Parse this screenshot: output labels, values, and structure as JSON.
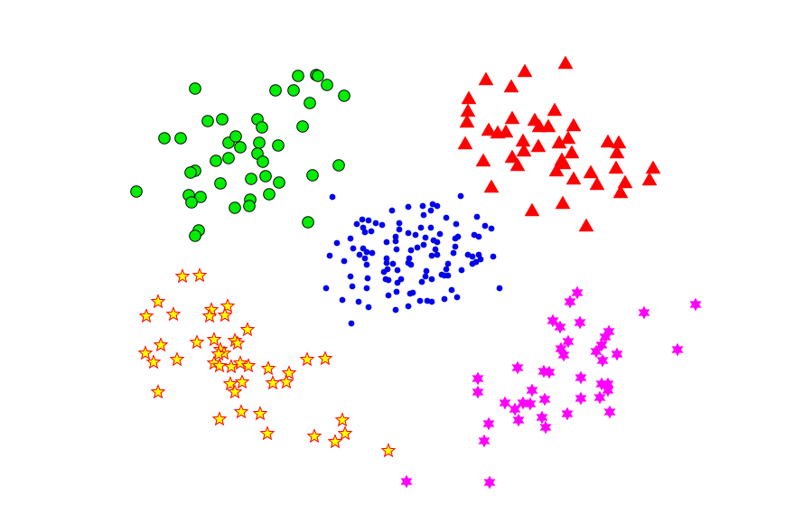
{
  "chart_data": {
    "type": "scatter",
    "title": "",
    "xlabel": "",
    "ylabel": "",
    "xlim": [
      0,
      8.69
    ],
    "ylim": [
      0,
      5.8
    ],
    "axes_visible": false,
    "grid": false,
    "legend": "none",
    "series": [
      {
        "marker": "circle",
        "color": "#00ee00",
        "edgecolor": "#000000",
        "points": [
          [
            3.3,
            4.96
          ],
          [
            3.5,
            4.97
          ],
          [
            3.52,
            4.96
          ],
          [
            3.62,
            4.86
          ],
          [
            3.81,
            4.74
          ],
          [
            2.16,
            4.82
          ],
          [
            3.05,
            4.8
          ],
          [
            3.25,
            4.8
          ],
          [
            3.43,
            4.66
          ],
          [
            2.3,
            4.46
          ],
          [
            2.46,
            4.48
          ],
          [
            2.85,
            4.48
          ],
          [
            2.9,
            4.39
          ],
          [
            3.35,
            4.4
          ],
          [
            1.82,
            4.27
          ],
          [
            2.0,
            4.27
          ],
          [
            2.53,
            4.22
          ],
          [
            2.61,
            4.29
          ],
          [
            2.66,
            4.17
          ],
          [
            2.87,
            4.22
          ],
          [
            3.08,
            4.19
          ],
          [
            2.85,
            4.1
          ],
          [
            2.91,
            4.01
          ],
          [
            2.39,
            4.02
          ],
          [
            2.53,
            4.05
          ],
          [
            2.16,
            3.91
          ],
          [
            2.11,
            3.89
          ],
          [
            2.44,
            3.77
          ],
          [
            2.78,
            3.82
          ],
          [
            2.94,
            3.85
          ],
          [
            3.09,
            3.78
          ],
          [
            3.46,
            3.86
          ],
          [
            3.75,
            3.97
          ],
          [
            1.51,
            3.68
          ],
          [
            2.09,
            3.64
          ],
          [
            2.22,
            3.62
          ],
          [
            2.12,
            3.56
          ],
          [
            2.98,
            3.65
          ],
          [
            2.77,
            3.59
          ],
          [
            2.76,
            3.52
          ],
          [
            2.6,
            3.5
          ],
          [
            3.41,
            3.34
          ],
          [
            2.2,
            3.25
          ],
          [
            2.16,
            3.19
          ]
        ]
      },
      {
        "marker": "triangle",
        "color": "#ff0000",
        "edgecolor": "#ff0000",
        "points": [
          [
            6.26,
            5.1
          ],
          [
            5.81,
            5.01
          ],
          [
            5.38,
            4.92
          ],
          [
            5.66,
            4.84
          ],
          [
            5.19,
            4.71
          ],
          [
            5.18,
            4.57
          ],
          [
            5.17,
            4.45
          ],
          [
            5.67,
            4.49
          ],
          [
            6.14,
            4.58
          ],
          [
            5.92,
            4.47
          ],
          [
            5.97,
            4.4
          ],
          [
            6.07,
            4.4
          ],
          [
            6.35,
            4.41
          ],
          [
            5.41,
            4.36
          ],
          [
            5.51,
            4.33
          ],
          [
            5.6,
            4.34
          ],
          [
            5.15,
            4.21
          ],
          [
            5.79,
            4.24
          ],
          [
            5.96,
            4.18
          ],
          [
            6.19,
            4.22
          ],
          [
            6.29,
            4.27
          ],
          [
            6.33,
            4.11
          ],
          [
            5.8,
            4.13
          ],
          [
            5.67,
            4.06
          ],
          [
            5.73,
            3.97
          ],
          [
            5.35,
            4.02
          ],
          [
            6.22,
            4.03
          ],
          [
            6.24,
            3.99
          ],
          [
            6.16,
            3.91
          ],
          [
            6.35,
            3.82
          ],
          [
            6.54,
            3.89
          ],
          [
            6.61,
            3.76
          ],
          [
            6.73,
            4.23
          ],
          [
            6.85,
            4.22
          ],
          [
            6.83,
            4.11
          ],
          [
            6.82,
            3.94
          ],
          [
            6.92,
            3.78
          ],
          [
            6.87,
            3.67
          ],
          [
            7.23,
            3.94
          ],
          [
            7.19,
            3.81
          ],
          [
            5.44,
            3.73
          ],
          [
            6.23,
            3.55
          ],
          [
            5.89,
            3.47
          ],
          [
            6.49,
            3.3
          ]
        ]
      },
      {
        "marker": "dot",
        "color": "#0000ee",
        "edgecolor": "#0000ee",
        "points": [
          [
            3.68,
            3.62
          ],
          [
            5.1,
            3.63
          ],
          [
            4.34,
            3.47
          ],
          [
            4.52,
            3.51
          ],
          [
            4.68,
            3.52
          ],
          [
            4.79,
            3.54
          ],
          [
            4.84,
            3.52
          ],
          [
            4.77,
            3.47
          ],
          [
            4.69,
            3.42
          ],
          [
            4.94,
            3.39
          ],
          [
            5.28,
            3.4
          ],
          [
            5.37,
            3.3
          ],
          [
            5.44,
            3.27
          ],
          [
            5.05,
            3.32
          ],
          [
            4.01,
            3.37
          ],
          [
            3.95,
            3.32
          ],
          [
            4.08,
            3.36
          ],
          [
            4.16,
            3.33
          ],
          [
            4.23,
            3.31
          ],
          [
            4.42,
            3.33
          ],
          [
            4.42,
            3.26
          ],
          [
            4.02,
            3.28
          ],
          [
            4.04,
            3.23
          ],
          [
            4.11,
            3.24
          ],
          [
            4.66,
            3.28
          ],
          [
            4.77,
            3.28
          ],
          [
            4.52,
            3.22
          ],
          [
            4.6,
            3.2
          ],
          [
            4.87,
            3.21
          ],
          [
            3.88,
            3.16
          ],
          [
            3.73,
            3.11
          ],
          [
            4.28,
            3.12
          ],
          [
            4.38,
            3.18
          ],
          [
            4.38,
            3.13
          ],
          [
            4.71,
            3.17
          ],
          [
            4.8,
            3.14
          ],
          [
            4.84,
            3.12
          ],
          [
            5.04,
            3.16
          ],
          [
            5.07,
            3.18
          ],
          [
            5.25,
            3.2
          ],
          [
            5.3,
            3.18
          ],
          [
            3.91,
            3.05
          ],
          [
            4.02,
            3.05
          ],
          [
            4.06,
            3.01
          ],
          [
            4.12,
            3.0
          ],
          [
            3.98,
            2.98
          ],
          [
            4.04,
            2.94
          ],
          [
            4.39,
            3.04
          ],
          [
            4.55,
            3.03
          ],
          [
            4.62,
            3.06
          ],
          [
            4.69,
            3.09
          ],
          [
            4.82,
            3.04
          ],
          [
            5.04,
            3.07
          ],
          [
            5.02,
            3.0
          ],
          [
            4.78,
            2.97
          ],
          [
            4.84,
            2.98
          ],
          [
            3.65,
            2.97
          ],
          [
            3.81,
            2.91
          ],
          [
            4.06,
            2.87
          ],
          [
            4.28,
            2.94
          ],
          [
            4.28,
            2.89
          ],
          [
            4.35,
            2.88
          ],
          [
            4.53,
            2.94
          ],
          [
            4.52,
            2.89
          ],
          [
            4.55,
            2.87
          ],
          [
            5.18,
            2.98
          ],
          [
            5.23,
            2.96
          ],
          [
            5.3,
            2.98
          ],
          [
            5.32,
            2.93
          ],
          [
            5.23,
            2.88
          ],
          [
            5.27,
            2.9
          ],
          [
            5.46,
            2.96
          ],
          [
            4.96,
            2.88
          ],
          [
            4.94,
            2.82
          ],
          [
            5.11,
            2.81
          ],
          [
            4.4,
            2.81
          ],
          [
            4.29,
            2.82
          ],
          [
            4.25,
            2.79
          ],
          [
            4.72,
            2.8
          ],
          [
            4.71,
            2.74
          ],
          [
            4.89,
            2.76
          ],
          [
            4.92,
            2.75
          ],
          [
            4.96,
            2.75
          ],
          [
            3.88,
            2.74
          ],
          [
            4.07,
            2.72
          ],
          [
            4.27,
            2.71
          ],
          [
            4.3,
            2.7
          ],
          [
            4.44,
            2.71
          ],
          [
            4.4,
            2.67
          ],
          [
            4.67,
            2.68
          ],
          [
            4.78,
            2.71
          ],
          [
            3.61,
            2.61
          ],
          [
            3.9,
            2.63
          ],
          [
            4.06,
            2.61
          ],
          [
            4.39,
            2.57
          ],
          [
            4.54,
            2.55
          ],
          [
            4.57,
            2.56
          ],
          [
            5.0,
            2.59
          ],
          [
            5.53,
            2.61
          ],
          [
            4.3,
            2.53
          ],
          [
            3.79,
            2.48
          ],
          [
            3.97,
            2.46
          ],
          [
            4.08,
            2.4
          ],
          [
            4.65,
            2.47
          ],
          [
            4.73,
            2.47
          ],
          [
            4.78,
            2.46
          ],
          [
            4.92,
            2.49
          ],
          [
            5.06,
            2.51
          ],
          [
            4.38,
            2.37
          ],
          [
            4.52,
            2.41
          ],
          [
            3.89,
            2.22
          ]
        ]
      },
      {
        "marker": "star5",
        "color": "#ffff00",
        "edgecolor": "#ff0000",
        "points": [
          [
            2.02,
            2.74
          ],
          [
            2.21,
            2.75
          ],
          [
            1.75,
            2.46
          ],
          [
            1.62,
            2.3
          ],
          [
            1.92,
            2.32
          ],
          [
            2.34,
            2.37
          ],
          [
            2.32,
            2.3
          ],
          [
            2.52,
            2.41
          ],
          [
            2.49,
            2.31
          ],
          [
            2.74,
            2.15
          ],
          [
            1.78,
            1.98
          ],
          [
            1.61,
            1.89
          ],
          [
            1.7,
            1.79
          ],
          [
            1.96,
            1.82
          ],
          [
            2.18,
            2.01
          ],
          [
            2.37,
            2.04
          ],
          [
            2.6,
            2.03
          ],
          [
            2.63,
            2.0
          ],
          [
            2.44,
            1.93
          ],
          [
            2.48,
            1.89
          ],
          [
            2.42,
            1.88
          ],
          [
            2.37,
            1.78
          ],
          [
            2.43,
            1.75
          ],
          [
            2.56,
            1.74
          ],
          [
            2.66,
            1.78
          ],
          [
            2.75,
            1.75
          ],
          [
            2.97,
            1.72
          ],
          [
            3.2,
            1.67
          ],
          [
            3.4,
            1.82
          ],
          [
            3.6,
            1.83
          ],
          [
            2.55,
            1.55
          ],
          [
            2.68,
            1.57
          ],
          [
            2.6,
            1.46
          ],
          [
            3.02,
            1.56
          ],
          [
            3.17,
            1.57
          ],
          [
            1.75,
            1.46
          ],
          [
            2.67,
            1.24
          ],
          [
            2.88,
            1.22
          ],
          [
            2.43,
            1.16
          ],
          [
            2.96,
            1.0
          ],
          [
            3.79,
            1.15
          ],
          [
            3.82,
            1.0
          ],
          [
            3.48,
            0.97
          ],
          [
            3.71,
            0.91
          ],
          [
            4.3,
            0.81
          ]
        ]
      },
      {
        "marker": "hexagram",
        "color": "#ff00ff",
        "edgecolor": "#ff00ff",
        "points": [
          [
            6.39,
            2.56
          ],
          [
            6.31,
            2.46
          ],
          [
            7.7,
            2.43
          ],
          [
            7.13,
            2.34
          ],
          [
            6.12,
            2.25
          ],
          [
            6.2,
            2.18
          ],
          [
            6.42,
            2.23
          ],
          [
            6.74,
            2.13
          ],
          [
            6.7,
            2.07
          ],
          [
            6.66,
            1.98
          ],
          [
            6.29,
            2.02
          ],
          [
            6.21,
            1.94
          ],
          [
            6.24,
            1.87
          ],
          [
            6.6,
            1.91
          ],
          [
            6.83,
            1.88
          ],
          [
            6.67,
            1.81
          ],
          [
            7.5,
            1.93
          ],
          [
            5.73,
            1.73
          ],
          [
            6.02,
            1.69
          ],
          [
            6.08,
            1.68
          ],
          [
            6.43,
            1.62
          ],
          [
            6.66,
            1.55
          ],
          [
            6.73,
            1.55
          ],
          [
            6.73,
            1.48
          ],
          [
            5.29,
            1.61
          ],
          [
            5.29,
            1.46
          ],
          [
            5.89,
            1.48
          ],
          [
            5.59,
            1.34
          ],
          [
            5.7,
            1.27
          ],
          [
            5.79,
            1.34
          ],
          [
            5.87,
            1.33
          ],
          [
            6.03,
            1.38
          ],
          [
            6.43,
            1.39
          ],
          [
            6.64,
            1.4
          ],
          [
            6.75,
            1.24
          ],
          [
            6.28,
            1.22
          ],
          [
            6.0,
            1.18
          ],
          [
            5.74,
            1.15
          ],
          [
            6.04,
            1.07
          ],
          [
            5.41,
            1.11
          ],
          [
            5.36,
            0.92
          ],
          [
            5.42,
            0.46
          ],
          [
            4.5,
            0.47
          ]
        ]
      }
    ]
  }
}
